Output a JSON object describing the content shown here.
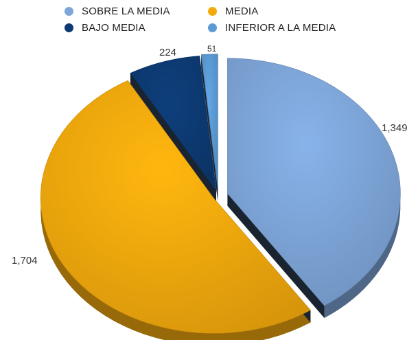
{
  "chart_data": {
    "type": "pie",
    "title": "",
    "categories": [
      "SOBRE LA MEDIA",
      "MEDIA",
      "BAJO MEDIA",
      "INFERIOR A LA MEDIA"
    ],
    "values": [
      1349,
      1704,
      224,
      51
    ],
    "value_labels": [
      "1,349",
      "1,704",
      "224",
      "51"
    ],
    "colors": [
      "#7ea6d9",
      "#f4a90d",
      "#0d3a73",
      "#5b9bd5"
    ],
    "legend_position": "top",
    "style": "3d-exploded"
  }
}
